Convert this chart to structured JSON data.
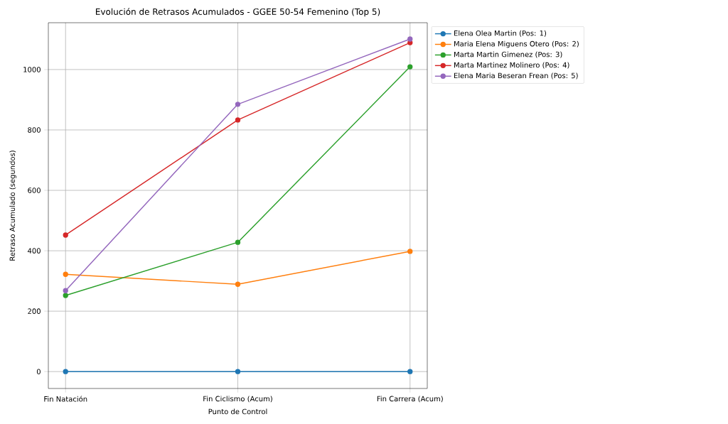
{
  "chart_data": {
    "type": "line",
    "title": "Evolución de Retrasos Acumulados - GGEE 50-54 Femenino (Top 5)",
    "xlabel": "Punto de Control",
    "ylabel": "Retraso Acumulado (segundos)",
    "categories": [
      "Fin Natación",
      "Fin Ciclismo (Acum)",
      "Fin Carrera (Acum)"
    ],
    "series": [
      {
        "name": "Elena Olea Martin (Pos: 1)",
        "color": "#1f77b4",
        "values": [
          0,
          0,
          0
        ]
      },
      {
        "name": "Maria Elena Miguens Otero (Pos: 2)",
        "color": "#ff7f0e",
        "values": [
          322,
          289,
          398
        ]
      },
      {
        "name": "Marta Martin Gimenez (Pos: 3)",
        "color": "#2ca02c",
        "values": [
          252,
          428,
          1009
        ]
      },
      {
        "name": "Marta Martinez Molinero (Pos: 4)",
        "color": "#d62728",
        "values": [
          452,
          833,
          1089
        ]
      },
      {
        "name": "Elena Maria Beseran Frean (Pos: 5)",
        "color": "#9467bd",
        "values": [
          268,
          885,
          1101
        ]
      }
    ],
    "ylim": [
      -56,
      1155
    ],
    "yticks": [
      0,
      200,
      400,
      600,
      800,
      1000
    ],
    "grid": true,
    "legend": "top right",
    "marker": "circle",
    "line_style": "solid"
  }
}
